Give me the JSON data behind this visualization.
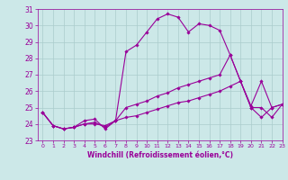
{
  "xlabel": "Windchill (Refroidissement éolien,°C)",
  "xlim": [
    -0.5,
    23
  ],
  "ylim": [
    23,
    31
  ],
  "yticks": [
    23,
    24,
    25,
    26,
    27,
    28,
    29,
    30,
    31
  ],
  "xticks": [
    0,
    1,
    2,
    3,
    4,
    5,
    6,
    7,
    8,
    9,
    10,
    11,
    12,
    13,
    14,
    15,
    16,
    17,
    18,
    19,
    20,
    21,
    22,
    23
  ],
  "background_color": "#cce8e8",
  "grid_color": "#aacccc",
  "line_color": "#990099",
  "line1": [
    24.7,
    23.9,
    23.7,
    23.8,
    24.2,
    24.3,
    23.7,
    24.2,
    28.4,
    28.8,
    29.6,
    30.4,
    30.7,
    30.5,
    29.6,
    30.1,
    30.0,
    29.7,
    28.2,
    26.6,
    25.0,
    24.4,
    25.0,
    25.2
  ],
  "line2": [
    24.7,
    23.9,
    23.7,
    23.8,
    24.0,
    24.1,
    23.8,
    24.2,
    25.0,
    25.2,
    25.4,
    25.7,
    25.9,
    26.2,
    26.4,
    26.6,
    26.8,
    27.0,
    28.2,
    26.6,
    25.1,
    26.6,
    25.0,
    25.2
  ],
  "line3": [
    24.7,
    23.9,
    23.7,
    23.8,
    24.0,
    24.0,
    23.9,
    24.2,
    24.4,
    24.5,
    24.7,
    24.9,
    25.1,
    25.3,
    25.4,
    25.6,
    25.8,
    26.0,
    26.3,
    26.6,
    25.0,
    25.0,
    24.4,
    25.2
  ]
}
